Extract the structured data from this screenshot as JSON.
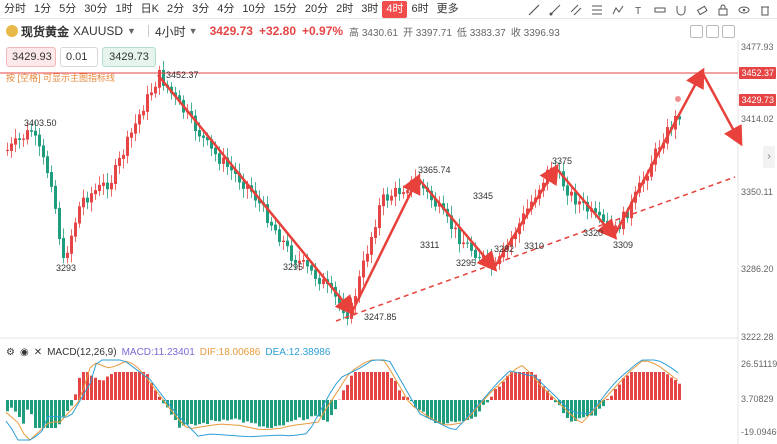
{
  "timeframes": [
    "分时",
    "1分",
    "5分",
    "30分",
    "1时",
    "日K",
    "2分",
    "3分",
    "4分",
    "10分",
    "15分",
    "20分",
    "2时",
    "3时",
    "4时",
    "6时",
    "更多"
  ],
  "active_timeframe": "4时",
  "symbol": {
    "name": "现货黄金",
    "code": "XAUUSD",
    "period": "4小时",
    "price": "3429.73",
    "change": "+32.80",
    "percent": "+0.97%",
    "ohlc": [
      {
        "k": "高",
        "v": "3430.61"
      },
      {
        "k": "开",
        "v": "3397.71"
      },
      {
        "k": "低",
        "v": "3383.37"
      },
      {
        "k": "收",
        "v": "3396.93"
      }
    ]
  },
  "order": {
    "sell": "3429.93",
    "qty": "0.01",
    "buy": "3429.73"
  },
  "hint": "按 [空格] 可显示主图指标线",
  "price_axis": {
    "labels": [
      "3477.93",
      "3414.02",
      "3350.11",
      "3286.20",
      "3222.28"
    ],
    "badge_high": "3452.37",
    "badge_current": "3429.73"
  },
  "annotations": [
    "3452.37",
    "3403.50",
    "3293",
    "3295",
    "3247.85",
    "3365.74",
    "3311",
    "3345",
    "3295",
    "3282",
    "3310",
    "3375",
    "3320",
    "3309"
  ],
  "macd": {
    "title": "MACD(12,26,9)",
    "macd": "MACD:11.23401",
    "dif": "DIF:18.00686",
    "dea": "DEA:12.38986",
    "axis": [
      "26.51119",
      "3.70829",
      "-19.09460"
    ]
  },
  "colors": {
    "up": "#e64545",
    "down": "#1e9e7e",
    "arrow": "#e8403a"
  }
}
